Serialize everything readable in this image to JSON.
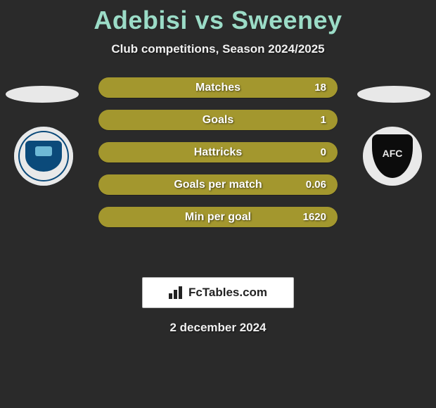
{
  "header": {
    "title": "Adebisi vs Sweeney",
    "subtitle": "Club competitions, Season 2024/2025",
    "title_color": "#9bdcc7",
    "title_fontsize": 36,
    "subtitle_fontsize": 17
  },
  "background_color": "#2a2a2a",
  "ellipse_color": "#e8e8e8",
  "clubs": {
    "left": {
      "name": "peterborough",
      "ring_color": "#e9e9e9",
      "primary": "#0b4a7a",
      "accent": "#6fb9d6"
    },
    "right": {
      "name": "academico",
      "ring_color": "#e9e9e9",
      "primary": "#0c0c0c",
      "text": "AFC"
    }
  },
  "bars": {
    "fill_color": "#a3972e",
    "fill_color_alt": "#a3972e",
    "label_color": "#ffffff",
    "value_color": "#ffffff",
    "height": 29,
    "gap": 17,
    "radius": 15,
    "rows": [
      {
        "label": "Matches",
        "value": "18",
        "left_ratio": 0.0,
        "right_ratio": 1.0
      },
      {
        "label": "Goals",
        "value": "1",
        "left_ratio": 0.0,
        "right_ratio": 1.0
      },
      {
        "label": "Hattricks",
        "value": "0",
        "left_ratio": 0.0,
        "right_ratio": 1.0
      },
      {
        "label": "Goals per match",
        "value": "0.06",
        "left_ratio": 0.0,
        "right_ratio": 1.0
      },
      {
        "label": "Min per goal",
        "value": "1620",
        "left_ratio": 0.0,
        "right_ratio": 1.0
      }
    ]
  },
  "footer": {
    "brand_text": "FcTables.com",
    "brand_bg": "#ffffff",
    "brand_border": "#bdbdbd",
    "date": "2 december 2024"
  }
}
